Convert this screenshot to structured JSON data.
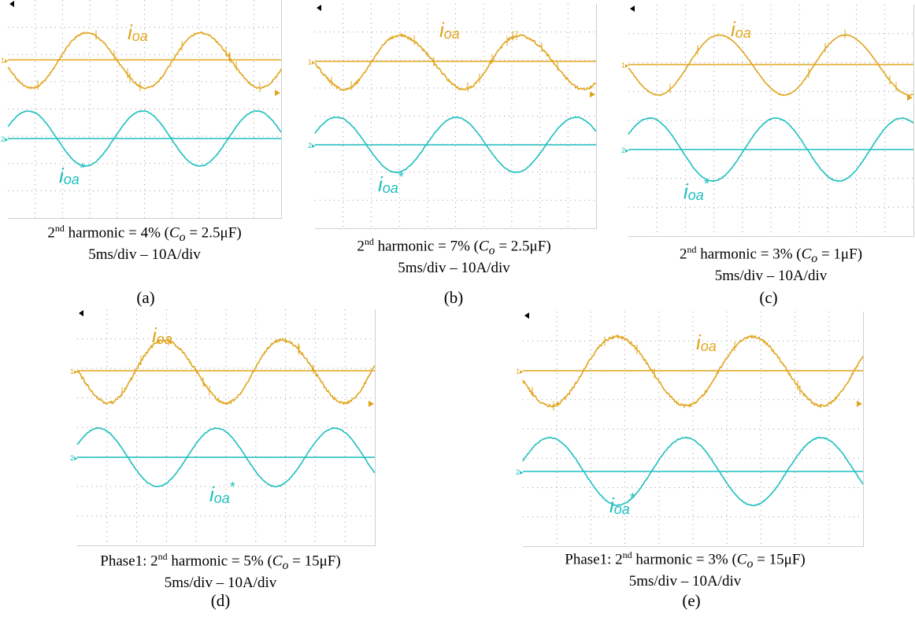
{
  "colors": {
    "ch1": "#e0a51e",
    "ch2": "#1fbfbf",
    "grid": "#9a9a9a"
  },
  "chart_data": [
    {
      "type": "line",
      "panel_label": "(a)",
      "caption_line1_pre": "2",
      "caption_line1_sup": "nd",
      "caption_line1_mid": " harmonic = 4% (",
      "caption_line1_var": "C",
      "caption_line1_sub": "o",
      "caption_line1_post": " = 2.5μF)",
      "caption_line2": "5ms/div – 10A/div",
      "series": [
        {
          "name": "i_oa",
          "label_main": "i",
          "label_sub": "oa",
          "label_star": ""
        },
        {
          "name": "i_oa*",
          "label_main": "i",
          "label_sub": "oa",
          "label_star": "*"
        }
      ],
      "harmonic_2nd_percent": 4
    },
    {
      "type": "line",
      "panel_label": "(b)",
      "caption_line1_pre": "2",
      "caption_line1_sup": "nd",
      "caption_line1_mid": " harmonic = 7% (",
      "caption_line1_var": "C",
      "caption_line1_sub": "o",
      "caption_line1_post": " = 2.5μF)",
      "caption_line2": "5ms/div – 10A/div",
      "series": [
        {
          "name": "i_oa",
          "label_main": "i",
          "label_sub": "oa",
          "label_star": ""
        },
        {
          "name": "i_oa*",
          "label_main": "i",
          "label_sub": "oa",
          "label_star": "*"
        }
      ],
      "harmonic_2nd_percent": 7
    },
    {
      "type": "line",
      "panel_label": "(c)",
      "caption_line1_pre": "2",
      "caption_line1_sup": "nd",
      "caption_line1_mid": " harmonic = 3% (",
      "caption_line1_var": "C",
      "caption_line1_sub": "o",
      "caption_line1_post": " = 1μF)",
      "caption_line2": "5ms/div – 10A/div",
      "series": [
        {
          "name": "i_oa",
          "label_main": "i",
          "label_sub": "oa",
          "label_star": ""
        },
        {
          "name": "i_oa*",
          "label_main": "i",
          "label_sub": "oa",
          "label_star": "*"
        }
      ],
      "harmonic_2nd_percent": 3
    },
    {
      "type": "line",
      "panel_label": "(d)",
      "caption_line1_pre": "Phase1: 2",
      "caption_line1_sup": "nd",
      "caption_line1_mid": " harmonic = 5% (",
      "caption_line1_var": "C",
      "caption_line1_sub": "o",
      "caption_line1_post": " = 15μF)",
      "caption_line2": "5ms/div – 10A/div",
      "series": [
        {
          "name": "i_oa",
          "label_main": "i",
          "label_sub": "oa",
          "label_star": ""
        },
        {
          "name": "i_oa*",
          "label_main": "i",
          "label_sub": "oa",
          "label_star": "*"
        }
      ],
      "harmonic_2nd_percent": 5
    },
    {
      "type": "line",
      "panel_label": "(e)",
      "caption_line1_pre": "Phase1: 2",
      "caption_line1_sup": "nd",
      "caption_line1_mid": " harmonic = 3% (",
      "caption_line1_var": "C",
      "caption_line1_sub": "o",
      "caption_line1_post": " = 15μF)",
      "caption_line2": "5ms/div – 10A/div",
      "series": [
        {
          "name": "i_oa",
          "label_main": "i",
          "label_sub": "oa",
          "label_star": ""
        },
        {
          "name": "i_oa*",
          "label_main": "i",
          "label_sub": "oa",
          "label_star": "*"
        }
      ],
      "harmonic_2nd_percent": 3
    }
  ],
  "channel_markers": {
    "ch1": "1",
    "ch2": "2"
  }
}
